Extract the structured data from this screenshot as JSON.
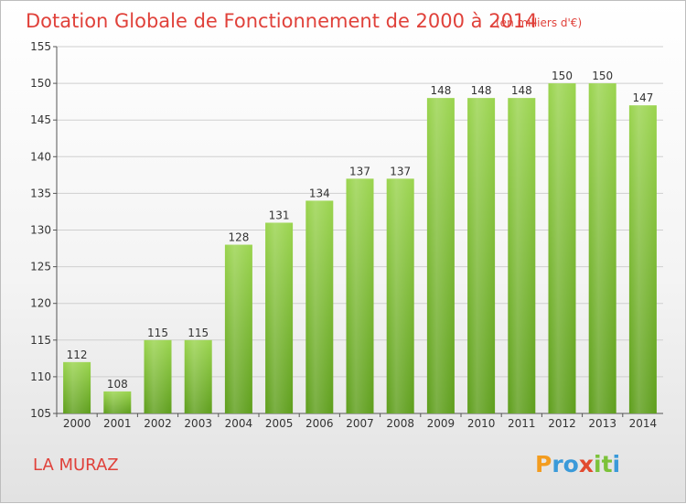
{
  "chart_data": {
    "type": "bar",
    "title": "Dotation Globale de Fonctionnement de 2000 à 2014",
    "subtitle": "(en milliers d'€)",
    "categories": [
      "2000",
      "2001",
      "2002",
      "2003",
      "2004",
      "2005",
      "2006",
      "2007",
      "2008",
      "2009",
      "2010",
      "2011",
      "2012",
      "2013",
      "2014"
    ],
    "values": [
      112,
      108,
      115,
      115,
      128,
      131,
      134,
      137,
      137,
      148,
      148,
      148,
      150,
      150,
      147
    ],
    "ylim": [
      105,
      155
    ],
    "yticks": [
      "105",
      "110",
      "115",
      "120",
      "125",
      "130",
      "135",
      "140",
      "145",
      "150",
      "155"
    ],
    "grid": true,
    "bar_color": "#7cc23a",
    "xlabel": "",
    "ylabel": ""
  },
  "commune": "LA MURAZ",
  "logo": {
    "letters": [
      "P",
      "r",
      "o",
      "x",
      "i",
      "t",
      "i"
    ],
    "colors": [
      "#f39c1f",
      "#3a9ad9",
      "#3a9ad9",
      "#e24a2f",
      "#7cc23a",
      "#7cc23a",
      "#3a9ad9"
    ]
  },
  "colors": {
    "title": "#e0413a",
    "accent": "#7cc23a"
  }
}
